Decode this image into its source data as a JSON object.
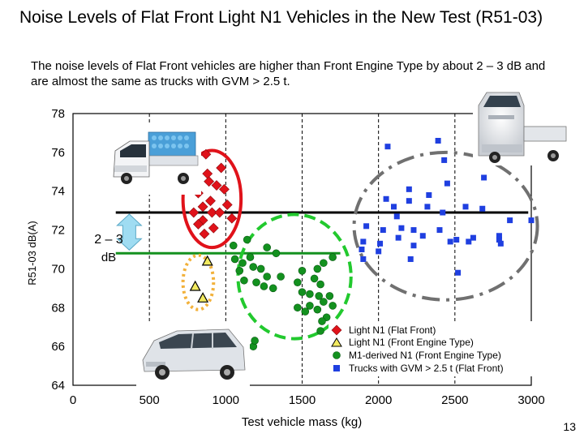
{
  "slide": {
    "title": "Noise Levels of Flat Front Light N1 Vehicles in the New Test (R51-03)",
    "subtitle": "The noise levels of Flat Front vehicles are higher than Front Engine Type by about 2 – 3 dB and are almost the same as trucks with GVM > 2.5 t.",
    "page_number": "13"
  },
  "chart_data": {
    "type": "scatter",
    "xlabel": "Test vehicle mass (kg)",
    "ylabel": "R51-03 dB(A)",
    "xlim": [
      0,
      3000
    ],
    "ylim": [
      64,
      78
    ],
    "x_ticks": [
      "0",
      "500",
      "1000",
      "1500",
      "2000",
      "2500",
      "3000"
    ],
    "y_ticks": [
      "64",
      "66",
      "68",
      "70",
      "72",
      "74",
      "76",
      "78"
    ],
    "grid_x": [
      500,
      1000,
      1500,
      2000,
      2500
    ],
    "colors": {
      "flat_front": "#e0121a",
      "front_engine": "#f2ea60",
      "m1_derived": "#13911f",
      "trucks": "#1f3fe0",
      "upper_line": "#000000",
      "lower_line": "#13911f",
      "arrow": "#9fdcf2"
    },
    "series": [
      {
        "name": "Light N1 (Flat Front)",
        "marker": "diamond",
        "points": [
          [
            870,
            75.9
          ],
          [
            970,
            75.2
          ],
          [
            880,
            74.9
          ],
          [
            890,
            74.5
          ],
          [
            940,
            74.3
          ],
          [
            820,
            73.9
          ],
          [
            990,
            74.1
          ],
          [
            900,
            73.5
          ],
          [
            850,
            73.2
          ],
          [
            790,
            72.9
          ],
          [
            910,
            72.9
          ],
          [
            1010,
            73.3
          ],
          [
            850,
            72.5
          ],
          [
            820,
            72.3
          ],
          [
            960,
            72.9
          ],
          [
            1040,
            72.6
          ],
          [
            920,
            72.1
          ],
          [
            860,
            71.8
          ]
        ]
      },
      {
        "name": "Light N1 (Front Engine Type)",
        "marker": "triangle",
        "points": [
          [
            880,
            70.4
          ],
          [
            800,
            69.1
          ],
          [
            850,
            68.5
          ]
        ]
      },
      {
        "name": "M1-derived N1 (Front Engine Type)",
        "marker": "circle",
        "points": [
          [
            1050,
            71.2
          ],
          [
            1140,
            71.5
          ],
          [
            1270,
            71.1
          ],
          [
            1160,
            70.6
          ],
          [
            1330,
            70.8
          ],
          [
            1060,
            70.5
          ],
          [
            1110,
            70.3
          ],
          [
            1180,
            70.1
          ],
          [
            1230,
            70.0
          ],
          [
            1090,
            69.9
          ],
          [
            1270,
            69.6
          ],
          [
            1120,
            69.4
          ],
          [
            1200,
            69.3
          ],
          [
            1360,
            69.6
          ],
          [
            1250,
            69.1
          ],
          [
            1310,
            69.0
          ],
          [
            1500,
            69.9
          ],
          [
            1600,
            70.0
          ],
          [
            1640,
            70.3
          ],
          [
            1700,
            70.6
          ],
          [
            1470,
            69.3
          ],
          [
            1580,
            69.5
          ],
          [
            1620,
            69.2
          ],
          [
            1500,
            68.8
          ],
          [
            1550,
            68.7
          ],
          [
            1610,
            68.6
          ],
          [
            1680,
            68.6
          ],
          [
            1640,
            68.3
          ],
          [
            1550,
            68.1
          ],
          [
            1600,
            67.9
          ],
          [
            1700,
            68.1
          ],
          [
            1470,
            68.0
          ],
          [
            1520,
            67.8
          ],
          [
            1660,
            67.5
          ],
          [
            1630,
            67.3
          ],
          [
            1620,
            66.8
          ],
          [
            1000,
            66.0
          ],
          [
            1180,
            66.0
          ],
          [
            1190,
            66.3
          ]
        ]
      },
      {
        "name": "Trucks with GVM > 2.5 t (Flat Front)",
        "marker": "square",
        "points": [
          [
            2060,
            76.3
          ],
          [
            2390,
            76.6
          ],
          [
            2430,
            75.6
          ],
          [
            2720,
            75.9
          ],
          [
            2450,
            74.4
          ],
          [
            2690,
            74.7
          ],
          [
            2200,
            74.1
          ],
          [
            2330,
            73.8
          ],
          [
            2050,
            73.6
          ],
          [
            2100,
            73.2
          ],
          [
            2200,
            73.5
          ],
          [
            2320,
            73.2
          ],
          [
            2420,
            72.9
          ],
          [
            2570,
            73.2
          ],
          [
            2680,
            73.1
          ],
          [
            2860,
            72.5
          ],
          [
            3000,
            72.5
          ],
          [
            2120,
            72.7
          ],
          [
            1920,
            72.2
          ],
          [
            2030,
            72.0
          ],
          [
            2150,
            72.1
          ],
          [
            2230,
            72.0
          ],
          [
            2290,
            71.7
          ],
          [
            2400,
            72.0
          ],
          [
            2510,
            71.5
          ],
          [
            2620,
            71.6
          ],
          [
            2790,
            71.5
          ],
          [
            2800,
            71.3
          ],
          [
            1900,
            71.4
          ],
          [
            2010,
            71.3
          ],
          [
            2130,
            71.6
          ],
          [
            2230,
            71.2
          ],
          [
            2470,
            71.4
          ],
          [
            2590,
            71.4
          ],
          [
            2790,
            71.7
          ],
          [
            2000,
            70.9
          ],
          [
            2210,
            70.5
          ],
          [
            2520,
            69.8
          ],
          [
            1890,
            71.0
          ],
          [
            1900,
            70.5
          ]
        ]
      }
    ],
    "ellipses": [
      {
        "color": "#e0121a",
        "dash": "solid",
        "cx": 910,
        "cy": 73.6,
        "rx": 190,
        "ry": 2.5
      },
      {
        "color": "#f2b13a",
        "dash": "dotted",
        "cx": 820,
        "cy": 69.3,
        "rx": 100,
        "ry": 1.4
      },
      {
        "color": "#22c92e",
        "dash": "dashed",
        "cx": 1450,
        "cy": 69.6,
        "rx": 370,
        "ry": 3.2
      },
      {
        "color": "#707070",
        "dash": "dashdot",
        "cx": 2440,
        "cy": 72.2,
        "rx": 600,
        "ry": 3.8
      }
    ],
    "reference_lines": [
      {
        "name": "front-engine-level",
        "y": 70.8,
        "x_from": 280,
        "x_to": 1750,
        "color": "#13911f"
      },
      {
        "name": "flat-front-level",
        "y": 72.9,
        "x_from": 280,
        "x_to": 2980,
        "color": "#000000"
      }
    ],
    "annotation": {
      "line1": "2 – 3",
      "line2": "dB",
      "arrow_from": 70.8,
      "arrow_to": 72.9,
      "arrow_x": 140
    },
    "legend": {
      "position": "bottom-right"
    }
  },
  "images": {
    "top_left": "flat-front light truck (photo)",
    "top_right": "flat-front cab-over truck (photo)",
    "bottom_left": "station wagon (photo)"
  }
}
